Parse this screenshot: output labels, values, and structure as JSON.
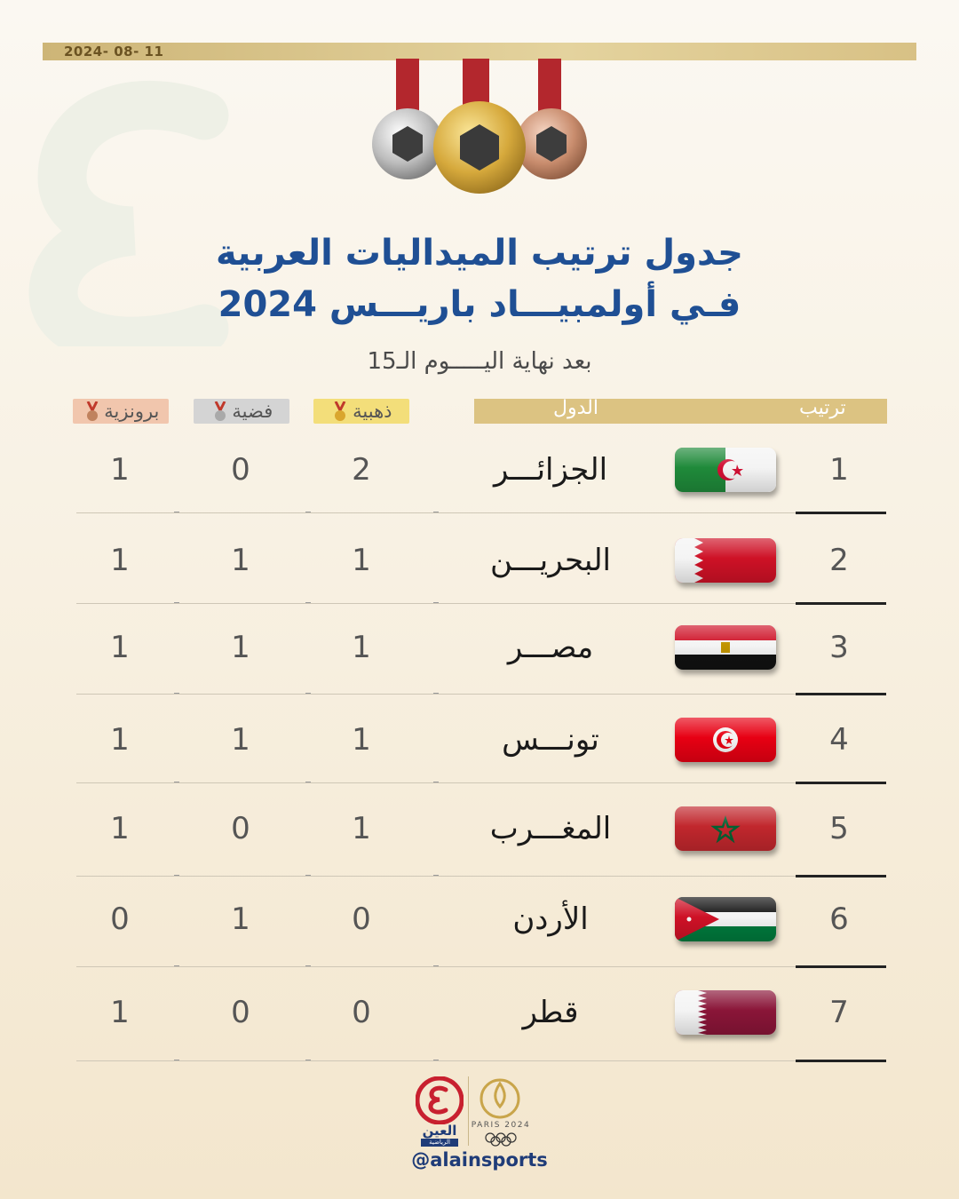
{
  "header": {
    "date": "2024- 08- 11",
    "title_line1": "جدول ترتيب الميداليات العربية",
    "title_line2": "فـي أولمبيـــاد باريـــس 2024",
    "subtitle": "بعد نهاية اليـــــوم الـ15"
  },
  "table": {
    "headers": {
      "rank": "ترتيب",
      "country": "الدول",
      "gold": "ذهبية",
      "silver": "فضية",
      "bronze": "برونزية"
    },
    "rows": [
      {
        "rank": "1",
        "country": "الجزائـــر",
        "flag": "algeria-flag",
        "gold": "2",
        "silver": "0",
        "bronze": "1"
      },
      {
        "rank": "2",
        "country": "البحريـــن",
        "flag": "bahrain-flag",
        "gold": "1",
        "silver": "1",
        "bronze": "1"
      },
      {
        "rank": "3",
        "country": "مصـــر",
        "flag": "egypt-flag",
        "gold": "1",
        "silver": "1",
        "bronze": "1"
      },
      {
        "rank": "4",
        "country": "تونـــس",
        "flag": "tunisia-flag",
        "gold": "1",
        "silver": "1",
        "bronze": "1"
      },
      {
        "rank": "5",
        "country": "المغـــرب",
        "flag": "morocco-flag",
        "gold": "1",
        "silver": "0",
        "bronze": "1"
      },
      {
        "rank": "6",
        "country": "الأردن",
        "flag": "jordan-flag",
        "gold": "0",
        "silver": "1",
        "bronze": "0"
      },
      {
        "rank": "7",
        "country": "قطر",
        "flag": "qatar-flag",
        "gold": "0",
        "silver": "0",
        "bronze": "1"
      }
    ]
  },
  "footer": {
    "brand_name": "العين",
    "brand_sub": "الرياضية",
    "paris_text": "PARIS 2024",
    "handle": "@alainsports"
  },
  "colors": {
    "title_blue": "#1f4f94",
    "gold_bar": "#dcc382",
    "gold_pill": "#f3de7a",
    "silver_pill": "#d4d4d4",
    "bronze_pill": "#f1c6ad"
  }
}
